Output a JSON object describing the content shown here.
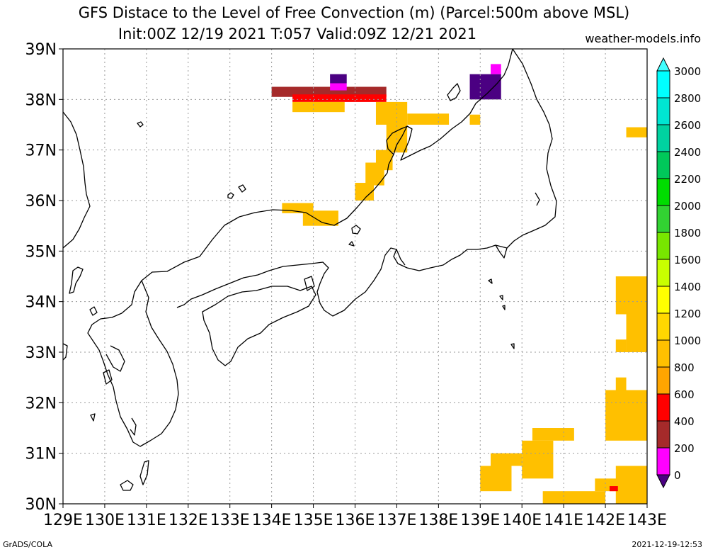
{
  "title": "GFS Distace to the Level of Free Convection (m) (Parcel:500m above MSL)",
  "subtitle": "Init:00Z 12/19 2021 T:057 Valid:09Z 12/21 2021",
  "site": "weather-models.info",
  "footer_left": "GrADS/COLA",
  "footer_right": "2021-12-19-12:53",
  "chart_data": {
    "type": "heatmap",
    "x_ticks": [
      "129E",
      "130E",
      "131E",
      "132E",
      "133E",
      "134E",
      "135E",
      "136E",
      "137E",
      "138E",
      "139E",
      "140E",
      "141E",
      "142E",
      "143E"
    ],
    "y_ticks": [
      "30N",
      "31N",
      "32N",
      "33N",
      "34N",
      "35N",
      "36N",
      "37N",
      "38N",
      "39N"
    ],
    "xlim": [
      129,
      143
    ],
    "ylim": [
      30,
      39
    ],
    "grid": true,
    "legend": "right",
    "colorbar": {
      "labels": [
        "0",
        "200",
        "400",
        "600",
        "800",
        "1000",
        "1200",
        "1400",
        "1600",
        "1800",
        "2000",
        "2200",
        "2400",
        "2600",
        "2800",
        "3000"
      ],
      "colors": [
        "#4b0082",
        "#ff00ff",
        "#a52a2a",
        "#ff0000",
        "#ffa500",
        "#ffc000",
        "#ffd700",
        "#ffff00",
        "#c8ff00",
        "#78e600",
        "#32d232",
        "#00dc00",
        "#00c85a",
        "#00d2a0",
        "#00e6d2",
        "#00ffff",
        "#40ffff"
      ]
    },
    "regions": [
      {
        "band": "400",
        "color": "#a52a2a",
        "lon": [
          134.0,
          136.75
        ],
        "lat": [
          38.05,
          38.25
        ]
      },
      {
        "band": "200",
        "color": "#ff00ff",
        "lon": [
          135.4,
          135.8
        ],
        "lat": [
          38.18,
          38.32
        ]
      },
      {
        "band": "0",
        "color": "#4b0082",
        "lon": [
          135.4,
          135.8
        ],
        "lat": [
          38.32,
          38.5
        ]
      },
      {
        "band": "600",
        "color": "#ff0000",
        "lon": [
          134.5,
          136.75
        ],
        "lat": [
          37.95,
          38.1
        ]
      },
      {
        "band": "1000",
        "color": "#ffc000",
        "lon": [
          134.5,
          135.75
        ],
        "lat": [
          37.75,
          37.95
        ]
      },
      {
        "band": "1000",
        "color": "#ffc000",
        "lon": [
          136.5,
          137.25
        ],
        "lat": [
          37.5,
          37.95
        ]
      },
      {
        "band": "1000",
        "color": "#ffc000",
        "lon": [
          137.25,
          138.25
        ],
        "lat": [
          37.5,
          37.72
        ]
      },
      {
        "band": "1000",
        "color": "#ffc000",
        "lon": [
          136.75,
          137.25
        ],
        "lat": [
          36.95,
          37.5
        ]
      },
      {
        "band": "1000",
        "color": "#ffc000",
        "lon": [
          136.5,
          136.9
        ],
        "lat": [
          36.6,
          37.0
        ]
      },
      {
        "band": "1000",
        "color": "#ffc000",
        "lon": [
          136.25,
          136.7
        ],
        "lat": [
          36.3,
          36.75
        ]
      },
      {
        "band": "1000",
        "color": "#ffc000",
        "lon": [
          136.0,
          136.45
        ],
        "lat": [
          36.0,
          36.35
        ]
      },
      {
        "band": "1000",
        "color": "#ffc000",
        "lon": [
          134.25,
          135.0
        ],
        "lat": [
          35.75,
          35.95
        ]
      },
      {
        "band": "1000",
        "color": "#ffc000",
        "lon": [
          134.75,
          135.6
        ],
        "lat": [
          35.5,
          35.8
        ]
      },
      {
        "band": "0",
        "color": "#4b0082",
        "lon": [
          138.75,
          139.5
        ],
        "lat": [
          38.0,
          38.5
        ]
      },
      {
        "band": "200",
        "color": "#ff00ff",
        "lon": [
          139.25,
          139.5
        ],
        "lat": [
          38.5,
          38.7
        ]
      },
      {
        "band": "1000",
        "color": "#ffc000",
        "lon": [
          138.75,
          139.0
        ],
        "lat": [
          37.5,
          37.7
        ]
      },
      {
        "band": "1000",
        "color": "#ffc000",
        "lon": [
          142.5,
          143.0
        ],
        "lat": [
          37.25,
          37.45
        ]
      },
      {
        "band": "1000",
        "color": "#ffc000",
        "lon": [
          142.25,
          143.0
        ],
        "lat": [
          33.75,
          34.5
        ]
      },
      {
        "band": "1000",
        "color": "#ffc000",
        "lon": [
          142.5,
          143.0
        ],
        "lat": [
          33.0,
          33.75
        ]
      },
      {
        "band": "1000",
        "color": "#ffc000",
        "lon": [
          142.25,
          142.5
        ],
        "lat": [
          33.0,
          33.25
        ]
      },
      {
        "band": "1000",
        "color": "#ffc000",
        "lon": [
          142.25,
          142.5
        ],
        "lat": [
          32.25,
          32.5
        ]
      },
      {
        "band": "1000",
        "color": "#ffc000",
        "lon": [
          142.0,
          143.0
        ],
        "lat": [
          31.25,
          32.25
        ]
      },
      {
        "band": "1000",
        "color": "#ffc000",
        "lon": [
          140.25,
          141.25
        ],
        "lat": [
          31.25,
          31.5
        ]
      },
      {
        "band": "1000",
        "color": "#ffc000",
        "lon": [
          140.0,
          140.75
        ],
        "lat": [
          30.5,
          31.25
        ]
      },
      {
        "band": "1000",
        "color": "#ffc000",
        "lon": [
          139.25,
          140.0
        ],
        "lat": [
          30.75,
          31.0
        ]
      },
      {
        "band": "1000",
        "color": "#ffc000",
        "lon": [
          139.0,
          139.75
        ],
        "lat": [
          30.25,
          30.75
        ]
      },
      {
        "band": "1000",
        "color": "#ffc000",
        "lon": [
          140.5,
          142.0
        ],
        "lat": [
          30.0,
          30.25
        ]
      },
      {
        "band": "1000",
        "color": "#ffc000",
        "lon": [
          141.75,
          142.5
        ],
        "lat": [
          30.25,
          30.5
        ]
      },
      {
        "band": "1000",
        "color": "#ffc000",
        "lon": [
          142.25,
          143.0
        ],
        "lat": [
          30.0,
          30.75
        ]
      },
      {
        "band": "600",
        "color": "#ff0000",
        "lon": [
          142.1,
          142.3
        ],
        "lat": [
          30.25,
          30.35
        ]
      }
    ]
  }
}
